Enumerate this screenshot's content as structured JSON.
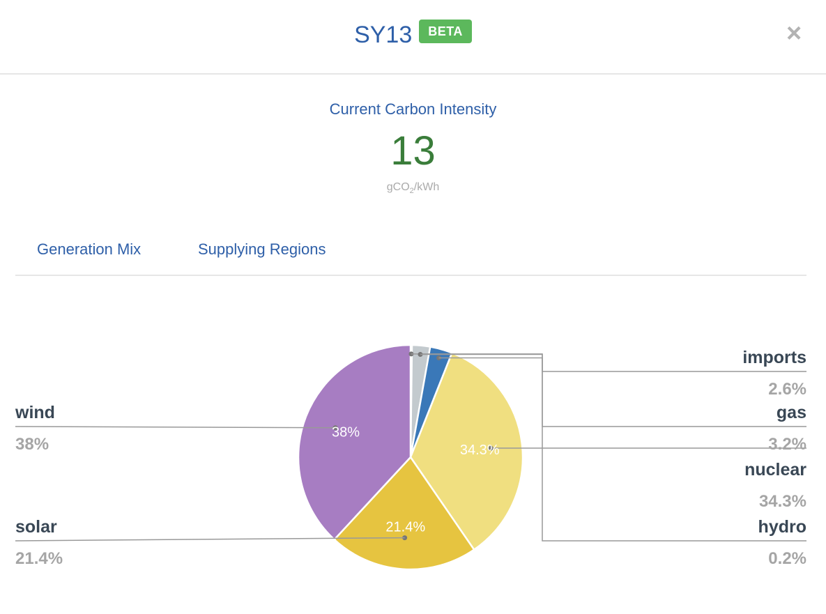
{
  "header": {
    "title": "SY13",
    "badge": "BETA",
    "close_symbol": "×"
  },
  "carbon": {
    "label": "Current Carbon Intensity",
    "value": "13",
    "unit_prefix": "gCO",
    "unit_sub": "2",
    "unit_suffix": "/kWh"
  },
  "tabs": {
    "generation_mix": "Generation Mix",
    "supplying_regions": "Supplying Regions"
  },
  "colors": {
    "brand_blue": "#2e5fa8",
    "intensity_green": "#3a7d3a",
    "beta_badge": "#5cb85c"
  },
  "chart_data": {
    "type": "pie",
    "slices": [
      {
        "name": "hydro",
        "value": 0.2,
        "label": "0.2%",
        "color": "#8a8a6b"
      },
      {
        "name": "imports",
        "value": 2.6,
        "label": "2.6%",
        "color": "#c3cace"
      },
      {
        "name": "gas",
        "value": 3.2,
        "label": "3.2%",
        "color": "#3a78b8"
      },
      {
        "name": "nuclear",
        "value": 34.3,
        "label": "34.3%",
        "color": "#f0df80"
      },
      {
        "name": "solar",
        "value": 21.4,
        "label": "21.4%",
        "color": "#e6c440"
      },
      {
        "name": "wind",
        "value": 38,
        "label": "38%",
        "color": "#a77dc2"
      }
    ]
  }
}
